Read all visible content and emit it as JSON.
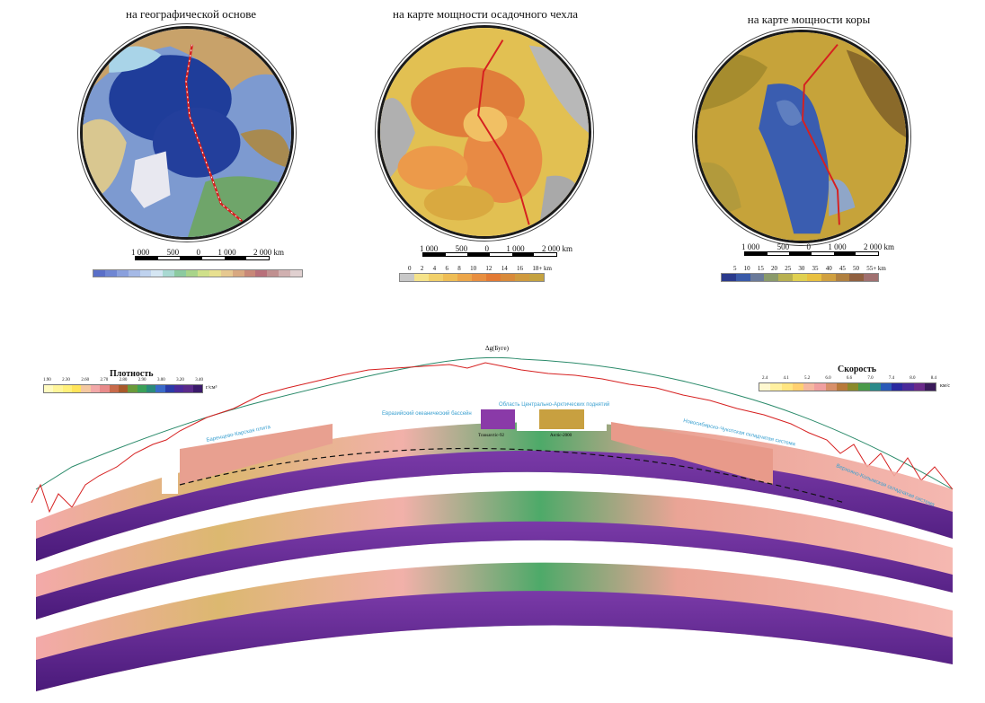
{
  "maps": [
    {
      "title": "на географической основе"
    },
    {
      "title": "на карте мощности осадочного чехла"
    },
    {
      "title": "на карте мощности коры"
    }
  ],
  "scales": [
    {
      "labels": [
        "1 000",
        "500",
        "0",
        "1 000",
        "2 000 km"
      ]
    },
    {
      "labels": [
        "1 000",
        "500",
        "0",
        "1 000",
        "2 000 km"
      ]
    },
    {
      "labels": [
        "1 000",
        "500",
        "0",
        "1 000",
        "2 000 km"
      ]
    }
  ],
  "legend_sed": {
    "labels": [
      "0",
      "2",
      "4",
      "6",
      "8",
      "10",
      "12",
      "14",
      "16",
      "18+ km"
    ]
  },
  "legend_crust": {
    "labels": [
      "5",
      "10",
      "15",
      "20",
      "25",
      "30",
      "35",
      "40",
      "45",
      "50",
      "55+ km"
    ]
  },
  "density": {
    "title": "Плотность",
    "unit": "г/см³",
    "labels": [
      "1.90",
      "2.10",
      "2.30",
      "2.50",
      "2.60",
      "2.65",
      "2.70",
      "2.75",
      "2.80",
      "2.85",
      "2.90",
      "2.95",
      "3.00",
      "3.10",
      "3.20",
      "3.30",
      "3.40"
    ]
  },
  "velocity": {
    "title": "Скорость",
    "unit": "км/с",
    "labels": [
      "2.4",
      "3.2",
      "4.1",
      "4.6",
      "5.2",
      "5.6",
      "6.0",
      "6.4",
      "6.6",
      "6.8",
      "7.0",
      "7.2",
      "7.4",
      "7.5",
      "8.0",
      "8.4"
    ]
  },
  "section_labels": {
    "delta_g": "Δg(Буге)",
    "basin": "Евразийский океанический бассейн",
    "cam": "Область Центрально-Арктических поднятий",
    "nsib": "Новосибирско-Чукотская складчатая система",
    "vk": "Верхояно-Колымская складчатая система",
    "bar": "Баренцево-Карская плита",
    "transarctic": "Transarctic-92",
    "arctic": "Arctic-2000"
  },
  "colors": {
    "profile": "#d62020",
    "grav": "#2a8a6a",
    "label": "#3aa0d0"
  }
}
